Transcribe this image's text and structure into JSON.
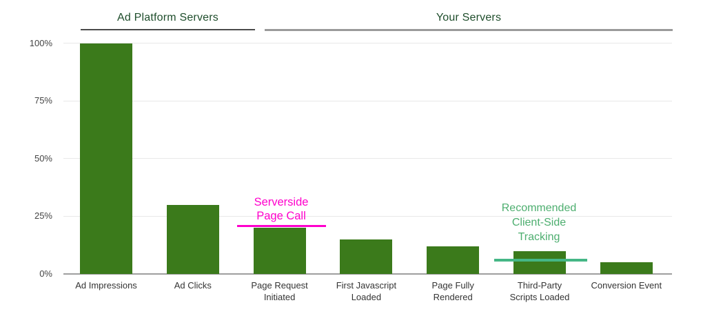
{
  "colors": {
    "background": "#ffffff",
    "bar": "#3B7A1B",
    "header_text": "#1E4D2B",
    "header1_underline": "#4A4A4A",
    "header2_underline": "#9A9A9A",
    "gridline": "#E8E8E8",
    "baseline": "#9E9E9E",
    "y_tick_text": "#444444",
    "x_tick_text": "#333333",
    "annotation_magenta": "#FF00CC",
    "annotation_green_text": "#4DAE6F",
    "annotation_teal_line": "#45B786"
  },
  "group_headers": [
    {
      "label": "Ad Platform Servers"
    },
    {
      "label": "Your Servers"
    }
  ],
  "chart_data": {
    "type": "bar",
    "title": "",
    "xlabel": "",
    "ylabel": "",
    "categories": [
      "Ad Impressions",
      "Ad Clicks",
      "Page Request\nInitiated",
      "First Javascript\nLoaded",
      "Page Fully\nRendered",
      "Third-Party\nScripts Loaded",
      "Conversion Event"
    ],
    "values": [
      100,
      30,
      20,
      15,
      12,
      10,
      5
    ],
    "ylim": [
      0,
      100
    ],
    "y_ticks": [
      {
        "value": 0,
        "label": "0%"
      },
      {
        "value": 25,
        "label": "25%"
      },
      {
        "value": 50,
        "label": "50%"
      },
      {
        "value": 75,
        "label": "75%"
      },
      {
        "value": 100,
        "label": "100%"
      }
    ],
    "grid": true,
    "legend_position": "none",
    "category_groups": [
      {
        "label": "Ad Platform Servers",
        "category_indexes": [
          0,
          1
        ]
      },
      {
        "label": "Your Servers",
        "category_indexes": [
          2,
          3,
          4,
          5,
          6
        ]
      }
    ],
    "annotations": [
      {
        "text": "Serverside\nPage Call",
        "anchor_category": "Page Request Initiated",
        "line_value_pct": 20.5
      },
      {
        "text": "Recommended\nClient-Side\nTracking",
        "anchor_category": "Third-Party Scripts Loaded",
        "line_value_pct": 6
      }
    ]
  }
}
